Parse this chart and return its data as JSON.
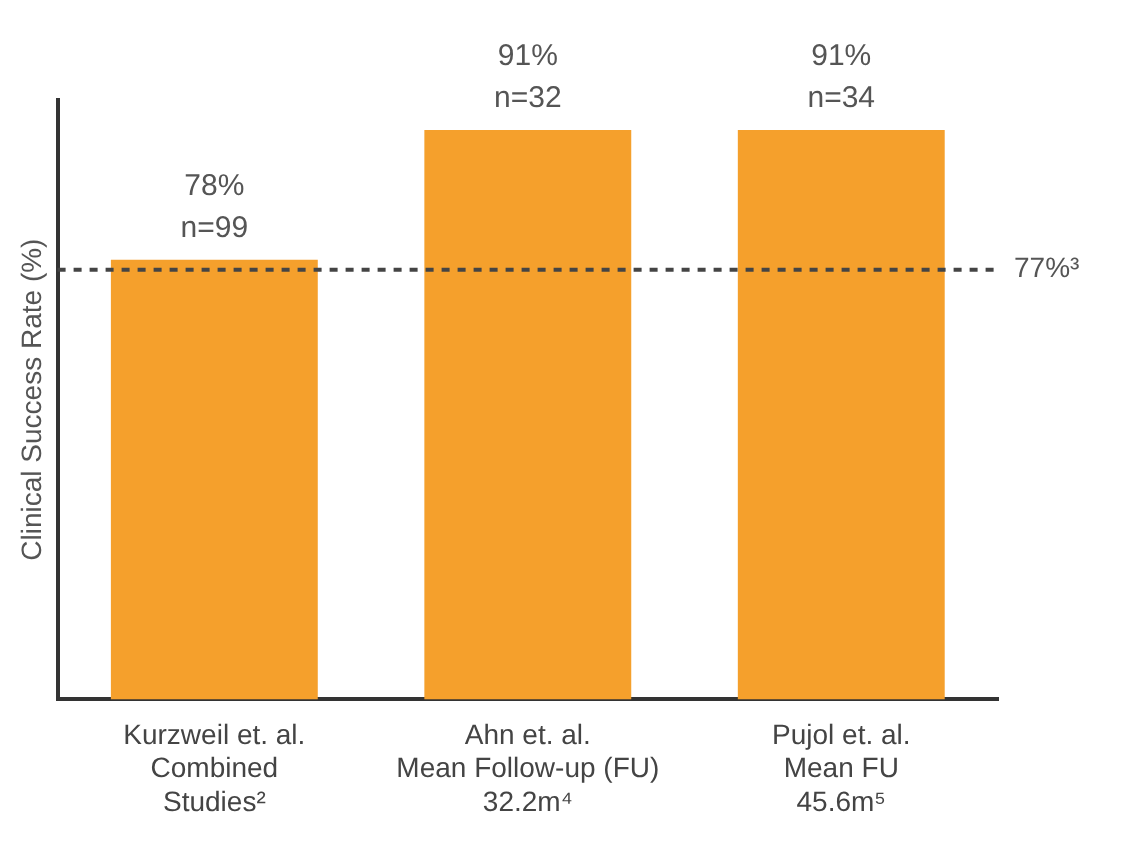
{
  "chart_data": {
    "type": "bar",
    "ylabel": "Clinical Success Rate (%)",
    "categories": [
      "Kurzweil et. al.\nCombined\nStudies²",
      "Ahn et. al.\nMean Follow-up (FU)\n32.2m⁴",
      "Pujol et. al.\nMean FU\n45.6m⁵"
    ],
    "values": [
      78,
      91,
      91
    ],
    "color": "#f5a02c",
    "value_labels": [
      "78%\nn=99",
      "91%\nn=32",
      "91%\nn=34"
    ],
    "ylim": [
      34,
      94
    ],
    "tick_labels": "x",
    "grid": false,
    "legend": false,
    "ref_lines": [
      {
        "axis": "y",
        "value": 77,
        "label": "77%³",
        "color": "#444444",
        "line_style": "dashed"
      }
    ]
  }
}
